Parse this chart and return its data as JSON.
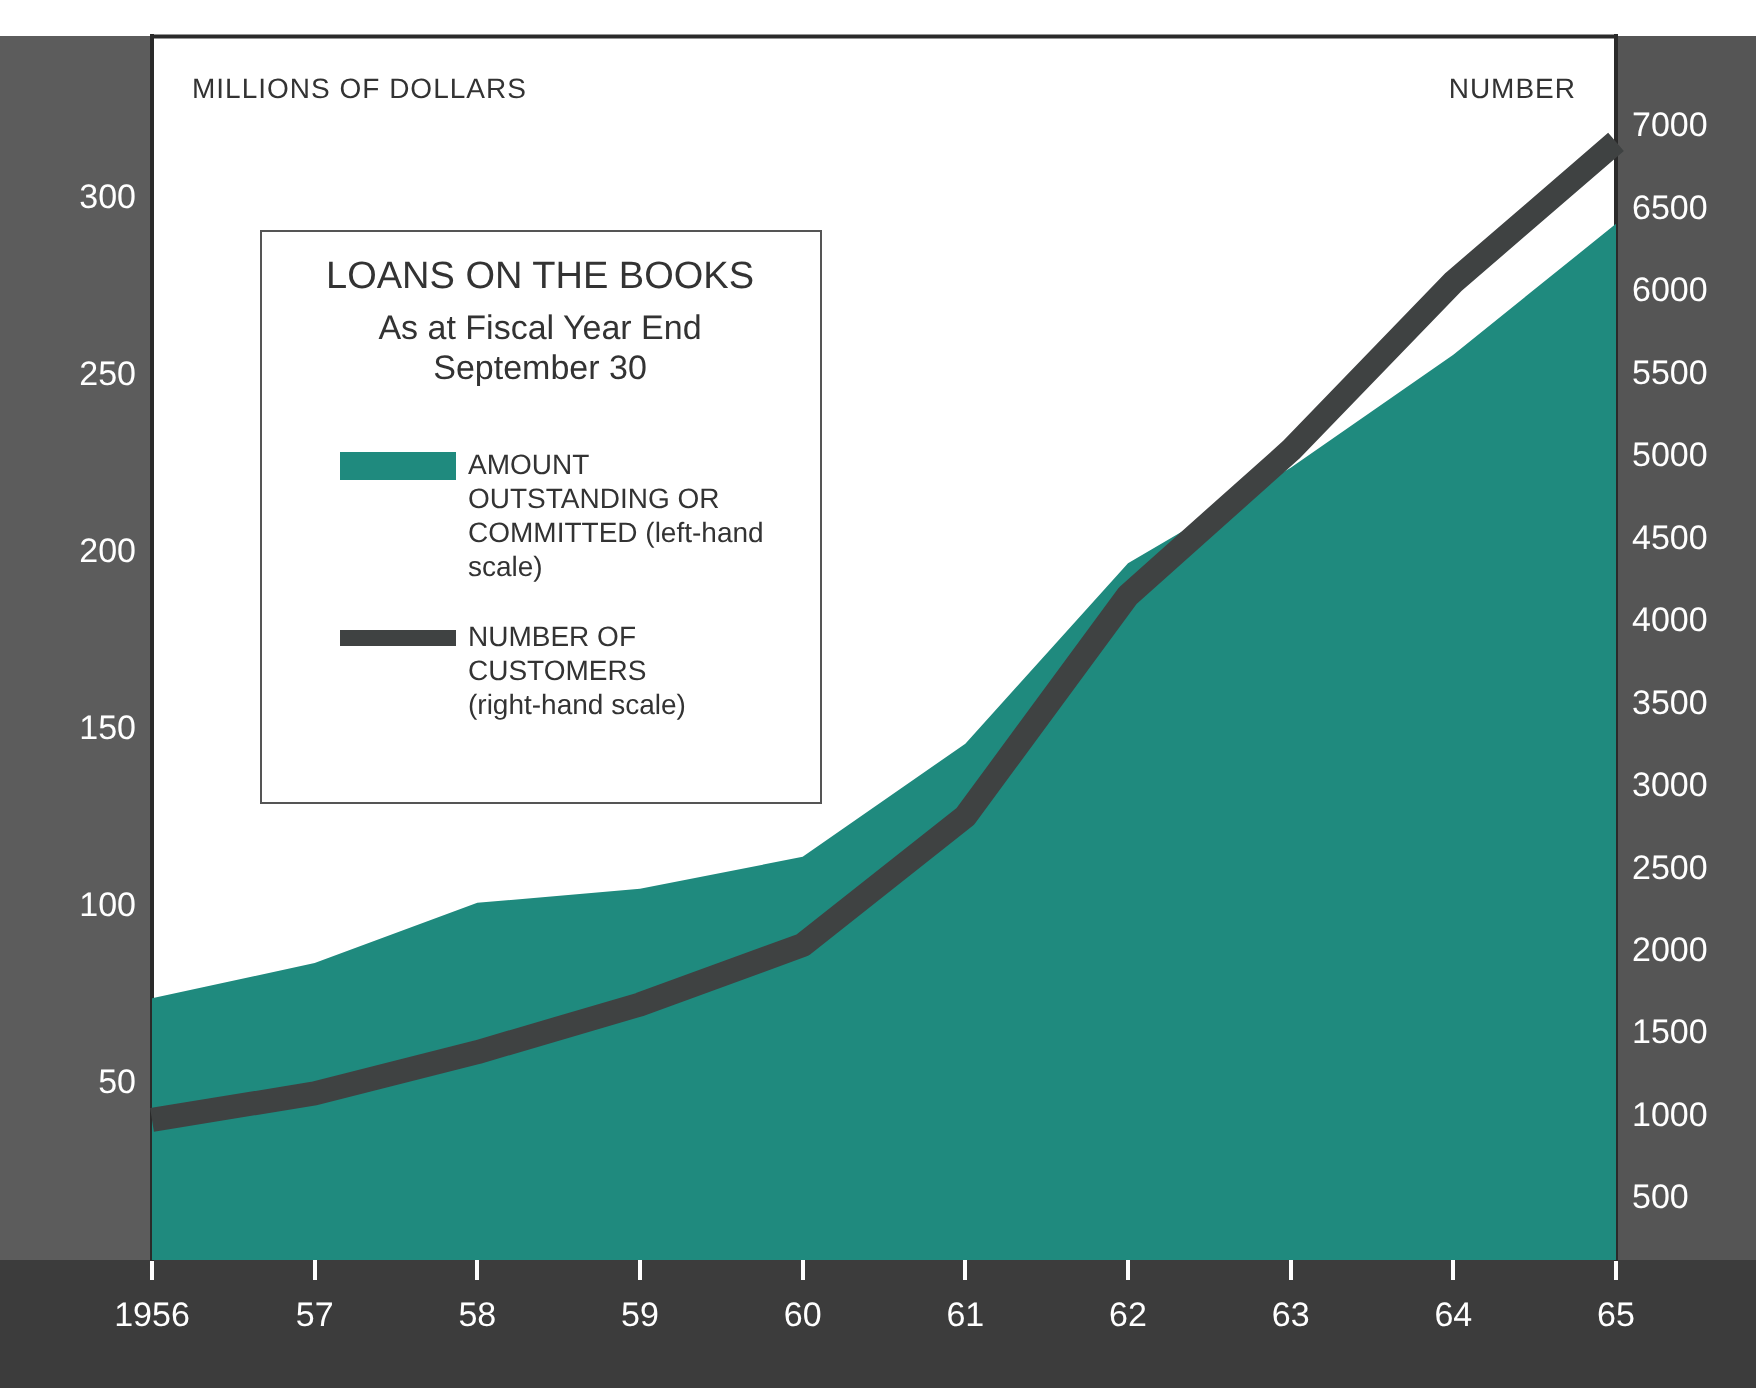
{
  "chart_data": {
    "type": "area",
    "title": "LOANS ON THE BOOKS",
    "subtitle": "As at Fiscal Year End September 30",
    "ylabel": "MILLIONS OF DOLLARS",
    "y2label": "NUMBER",
    "categories": [
      "1956",
      "57",
      "58",
      "59",
      "60",
      "61",
      "62",
      "63",
      "64",
      "65"
    ],
    "series": [
      {
        "name": "AMOUNT OUTSTANDING OR COMMITTED (left-hand scale)",
        "type": "area",
        "color": "#1f8a7e",
        "values": [
          74,
          84,
          101,
          105,
          114,
          146,
          197,
          224,
          256,
          293
        ]
      },
      {
        "name": "NUMBER OF CUSTOMERS (right-hand scale)",
        "type": "line",
        "axis": "y2",
        "color": "#3f4242",
        "values": [
          980,
          1140,
          1390,
          1680,
          2040,
          2820,
          4160,
          5040,
          6060,
          6910
        ]
      }
    ],
    "ylim": [
      0,
      346
    ],
    "yticks": [
      50,
      100,
      150,
      200,
      250,
      300
    ],
    "y2lim": [
      130,
      7550
    ],
    "y2ticks": [
      500,
      1000,
      1500,
      2000,
      2500,
      3000,
      3500,
      4000,
      4500,
      5000,
      5500,
      6000,
      6500,
      7000
    ],
    "grid": false,
    "legend": "top left"
  }
}
